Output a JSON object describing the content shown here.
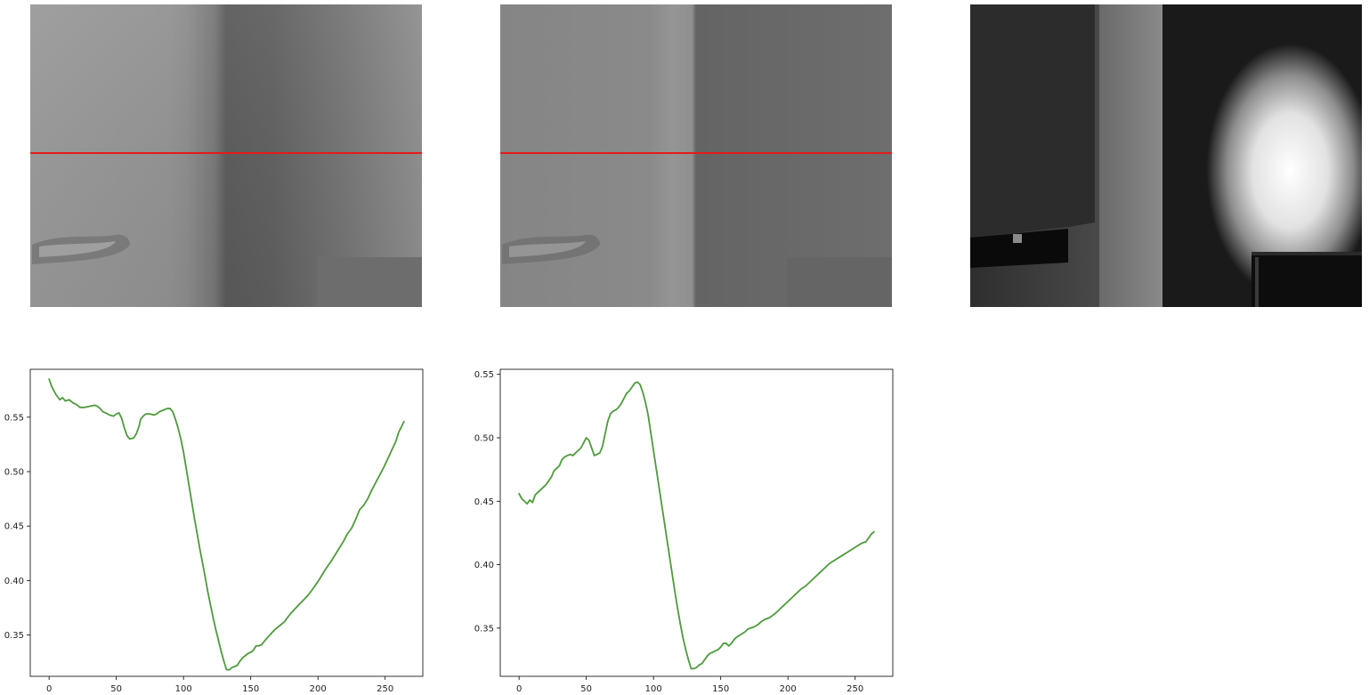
{
  "colors": {
    "line": "#4e9a3c",
    "scanline": "#e41a1c",
    "axis": "#000000"
  },
  "images": [
    {
      "name": "depth-image-1",
      "kind": "grayscale depth map with red scanline",
      "scanline": true
    },
    {
      "name": "depth-image-2",
      "kind": "grayscale depth map with red scanline",
      "scanline": true
    },
    {
      "name": "intensity-image",
      "kind": "grayscale infrared intensity image",
      "scanline": false
    }
  ],
  "chart_data": [
    {
      "type": "line",
      "title": "",
      "xlabel": "",
      "ylabel": "",
      "xlim": [
        -14,
        278
      ],
      "ylim": [
        0.312,
        0.594
      ],
      "xticks": [
        0,
        50,
        100,
        150,
        200,
        250
      ],
      "yticks": [
        0.35,
        0.4,
        0.45,
        0.5,
        0.55
      ],
      "ytick_labels": [
        "0.35",
        "0.40",
        "0.45",
        "0.50",
        "0.55"
      ],
      "grid": false,
      "series": [
        {
          "x": [
            0,
            2,
            5,
            8,
            10,
            12,
            15,
            18,
            20,
            23,
            26,
            30,
            34,
            36,
            38,
            40,
            42,
            45,
            48,
            50,
            52,
            54,
            56,
            58,
            60,
            63,
            65,
            67,
            68,
            70,
            72,
            75,
            78,
            80,
            82,
            84,
            86,
            88,
            90,
            92,
            94,
            96,
            98,
            100,
            102,
            104,
            106,
            108,
            110,
            112,
            114,
            116,
            118,
            120,
            122,
            124,
            126,
            128,
            130,
            132,
            134,
            136,
            138,
            140,
            142,
            144,
            146,
            148,
            150,
            152,
            154,
            156,
            158,
            160,
            162,
            165,
            168,
            170,
            172,
            175,
            178,
            180,
            183,
            186,
            190,
            193,
            196,
            200,
            203,
            206,
            210,
            213,
            216,
            219,
            222,
            225,
            228,
            231,
            234,
            237,
            240,
            243,
            246,
            249,
            252,
            255,
            258,
            260,
            262,
            264
          ],
          "y": [
            0.585,
            0.578,
            0.571,
            0.566,
            0.568,
            0.565,
            0.566,
            0.563,
            0.562,
            0.559,
            0.559,
            0.56,
            0.561,
            0.56,
            0.558,
            0.555,
            0.554,
            0.552,
            0.551,
            0.553,
            0.554,
            0.549,
            0.54,
            0.533,
            0.53,
            0.531,
            0.535,
            0.542,
            0.548,
            0.551,
            0.553,
            0.553,
            0.552,
            0.553,
            0.555,
            0.556,
            0.557,
            0.558,
            0.558,
            0.555,
            0.548,
            0.54,
            0.53,
            0.518,
            0.503,
            0.488,
            0.473,
            0.458,
            0.444,
            0.43,
            0.417,
            0.404,
            0.39,
            0.378,
            0.366,
            0.355,
            0.345,
            0.335,
            0.326,
            0.318,
            0.318,
            0.32,
            0.321,
            0.322,
            0.326,
            0.329,
            0.331,
            0.333,
            0.334,
            0.336,
            0.34,
            0.34,
            0.341,
            0.344,
            0.347,
            0.351,
            0.355,
            0.357,
            0.359,
            0.362,
            0.367,
            0.37,
            0.374,
            0.378,
            0.383,
            0.387,
            0.392,
            0.399,
            0.405,
            0.411,
            0.418,
            0.424,
            0.43,
            0.436,
            0.443,
            0.448,
            0.456,
            0.465,
            0.469,
            0.475,
            0.483,
            0.49,
            0.497,
            0.504,
            0.512,
            0.52,
            0.528,
            0.536,
            0.541,
            0.546
          ]
        }
      ]
    },
    {
      "type": "line",
      "title": "",
      "xlabel": "",
      "ylabel": "",
      "xlim": [
        -14,
        278
      ],
      "ylim": [
        0.312,
        0.554
      ],
      "xticks": [
        0,
        50,
        100,
        150,
        200,
        250
      ],
      "yticks": [
        0.35,
        0.4,
        0.45,
        0.5,
        0.55
      ],
      "ytick_labels": [
        "0.35",
        "0.40",
        "0.45",
        "0.50",
        "0.55"
      ],
      "grid": false,
      "series": [
        {
          "x": [
            0,
            2,
            4,
            6,
            8,
            10,
            12,
            14,
            16,
            18,
            20,
            22,
            24,
            26,
            28,
            30,
            32,
            34,
            36,
            38,
            40,
            42,
            44,
            46,
            48,
            50,
            52,
            54,
            56,
            58,
            60,
            62,
            64,
            66,
            68,
            70,
            72,
            74,
            76,
            78,
            80,
            82,
            84,
            86,
            88,
            90,
            92,
            94,
            96,
            98,
            100,
            102,
            104,
            106,
            108,
            110,
            112,
            114,
            116,
            118,
            120,
            122,
            124,
            126,
            128,
            130,
            132,
            134,
            136,
            138,
            140,
            142,
            144,
            146,
            148,
            150,
            152,
            154,
            156,
            158,
            160,
            162,
            165,
            168,
            170,
            172,
            175,
            178,
            180,
            183,
            186,
            190,
            193,
            196,
            200,
            203,
            206,
            210,
            213,
            216,
            219,
            222,
            225,
            228,
            231,
            234,
            237,
            240,
            243,
            246,
            249,
            252,
            255,
            258,
            260,
            262,
            264
          ],
          "y": [
            0.456,
            0.452,
            0.45,
            0.448,
            0.451,
            0.449,
            0.455,
            0.457,
            0.459,
            0.461,
            0.463,
            0.466,
            0.469,
            0.474,
            0.476,
            0.478,
            0.483,
            0.485,
            0.486,
            0.487,
            0.486,
            0.488,
            0.49,
            0.492,
            0.496,
            0.5,
            0.498,
            0.492,
            0.486,
            0.487,
            0.488,
            0.493,
            0.503,
            0.513,
            0.519,
            0.521,
            0.522,
            0.524,
            0.527,
            0.531,
            0.535,
            0.537,
            0.54,
            0.543,
            0.544,
            0.542,
            0.536,
            0.528,
            0.518,
            0.504,
            0.49,
            0.476,
            0.462,
            0.448,
            0.434,
            0.42,
            0.406,
            0.392,
            0.378,
            0.365,
            0.353,
            0.342,
            0.333,
            0.325,
            0.318,
            0.318,
            0.319,
            0.321,
            0.322,
            0.325,
            0.328,
            0.33,
            0.331,
            0.332,
            0.333,
            0.335,
            0.338,
            0.338,
            0.336,
            0.338,
            0.341,
            0.343,
            0.345,
            0.347,
            0.349,
            0.35,
            0.351,
            0.353,
            0.355,
            0.357,
            0.358,
            0.361,
            0.364,
            0.367,
            0.371,
            0.374,
            0.377,
            0.381,
            0.383,
            0.386,
            0.389,
            0.392,
            0.395,
            0.398,
            0.401,
            0.403,
            0.405,
            0.407,
            0.409,
            0.411,
            0.413,
            0.415,
            0.417,
            0.418,
            0.421,
            0.424,
            0.426
          ]
        }
      ]
    }
  ]
}
